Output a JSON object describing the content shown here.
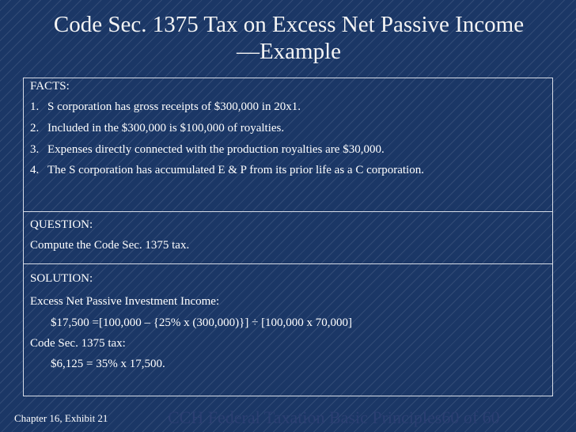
{
  "slide": {
    "title_line1": "Code Sec. 1375 Tax on Excess Net Passive Income",
    "title_line2": "—Example"
  },
  "facts": {
    "heading": "FACTS:",
    "items": [
      {
        "num": "1.",
        "text": "S corporation has gross receipts of $300,000 in 20x1."
      },
      {
        "num": "2.",
        "text": "Included in the $300,000 is $100,000 of royalties."
      },
      {
        "num": "3.",
        "text": "Expenses directly connected with the production royalties are $30,000."
      },
      {
        "num": "4.",
        "text": "The S corporation has accumulated E & P from its prior life as a C corporation."
      }
    ]
  },
  "question": {
    "heading": "QUESTION:",
    "text": "Compute the Code Sec. 1375 tax."
  },
  "solution": {
    "heading": "SOLUTION:",
    "line1": "Excess Net Passive Investment Income:",
    "line2": "$17,500 =[100,000 – {25% x (300,000)}] ÷ [100,000 x 70,000]",
    "line3": "Code Sec. 1375 tax:",
    "line4": "$6,125 = 35% x 17,500."
  },
  "footer": {
    "left": "Chapter 16, Exhibit 21",
    "right": "CCH Federal Taxation Basic Principles60 of 60"
  }
}
